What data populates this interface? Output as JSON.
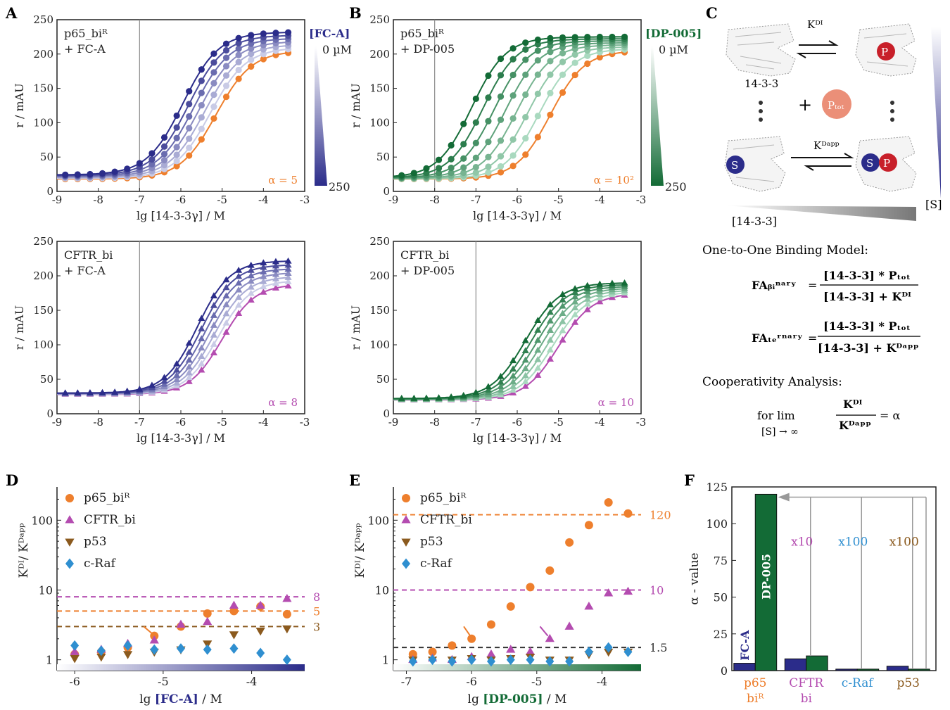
{
  "panel_letters": [
    "A",
    "B",
    "C",
    "D",
    "E",
    "F"
  ],
  "colors": {
    "orange": "#ee7f2d",
    "magenta": "#b44cb0",
    "brown": "#8b5a1e",
    "blue": "#2f8fd0",
    "navy": "#2b2c8a",
    "green": "#136b36",
    "lightgreen": "#a9d9bf",
    "lightnavy": "#c9cbe6",
    "grey": "#999999"
  },
  "chart_data": [
    {
      "id": "A1",
      "type": "line",
      "title": "p65_biᴿ\n+ FC-A",
      "xlabel": "lg [14-3-3γ] / M",
      "ylabel": "r / mAU",
      "xlim": [
        -9,
        -3
      ],
      "ylim": [
        0,
        250
      ],
      "xticks": [
        "-9",
        "-8",
        "-7",
        "-6",
        "-5",
        "-4",
        "-3"
      ],
      "yticks": [
        "0",
        "50",
        "100",
        "150",
        "200",
        "250"
      ],
      "vline": -7,
      "marker": "circle",
      "alpha_label": "α = 5",
      "alpha_color": "#ee7f2d",
      "curves": {
        "count": 7,
        "bottom": [
          18,
          24
        ],
        "top": [
          205,
          232
        ],
        "ec50": [
          -5.15,
          -5.95
        ],
        "slope": 1.0
      },
      "legend": {
        "title": "[FC-A]",
        "top": "0 µM",
        "bottom": "250",
        "color": "#2b2c8a"
      }
    },
    {
      "id": "B1",
      "type": "line",
      "title": "p65_biᴿ\n+ DP-005",
      "xlabel": "lg [14-3-3γ] / M",
      "ylabel": "r / mAU",
      "xlim": [
        -9,
        -3
      ],
      "ylim": [
        0,
        250
      ],
      "xticks": [
        "-9",
        "-8",
        "-7",
        "-6",
        "-5",
        "-4",
        "-3"
      ],
      "yticks": [
        "0",
        "50",
        "100",
        "150",
        "200",
        "250"
      ],
      "vline": -8,
      "marker": "circle",
      "alpha_label": "α = 10²",
      "alpha_color": "#ee7f2d",
      "curves": {
        "count": 8,
        "bottom": [
          18,
          20
        ],
        "top": [
          205,
          225
        ],
        "ec50": [
          -5.2,
          -7.1
        ],
        "slope": 1.05
      },
      "legend": {
        "title": "[DP-005]",
        "top": "0 µM",
        "bottom": "250",
        "color": "#136b36"
      }
    },
    {
      "id": "A2",
      "type": "line",
      "title": "CFTR_bi\n+ FC-A",
      "xlabel": "lg [14-3-3γ] / M",
      "ylabel": "r / mAU",
      "xlim": [
        -9,
        -3
      ],
      "ylim": [
        0,
        250
      ],
      "xticks": [
        "-9",
        "-8",
        "-7",
        "-6",
        "-5",
        "-4",
        "-3"
      ],
      "yticks": [
        "0",
        "50",
        "100",
        "150",
        "200",
        "250"
      ],
      "vline": -7,
      "marker": "triangle",
      "alpha_label": "α = 8",
      "alpha_color": "#b44cb0",
      "curves": {
        "count": 7,
        "bottom": [
          28,
          30
        ],
        "top": [
          188,
          222
        ],
        "ec50": [
          -5.0,
          -5.6
        ],
        "slope": 1.1
      }
    },
    {
      "id": "B2",
      "type": "line",
      "title": "CFTR_bi\n+ DP-005",
      "xlabel": "lg [14-3-3γ] / M",
      "ylabel": "r / mAU",
      "xlim": [
        -9,
        -3
      ],
      "ylim": [
        0,
        250
      ],
      "xticks": [
        "-9",
        "-8",
        "-7",
        "-6",
        "-5",
        "-4",
        "-3"
      ],
      "yticks": [
        "0",
        "50",
        "100",
        "150",
        "200",
        "250"
      ],
      "vline": -7,
      "marker": "triangle",
      "alpha_label": "α = 10",
      "alpha_color": "#b44cb0",
      "curves": {
        "count": 7,
        "bottom": [
          20,
          22
        ],
        "top": [
          175,
          190
        ],
        "ec50": [
          -5.0,
          -5.8
        ],
        "slope": 1.05
      }
    },
    {
      "id": "D",
      "type": "scatter",
      "xlabel_prefix": "lg ",
      "xlabel_bold": "[FC-A]",
      "xlabel_suffix": " / M",
      "ylabel": "Kᴰᴵ/ Kᴰᵃᵖᵖ",
      "xscale": "linear",
      "yscale": "log",
      "xlim": [
        -6.2,
        -3.4
      ],
      "ylim": [
        0.7,
        300
      ],
      "xticks": [
        "-6",
        "-5",
        "-4"
      ],
      "yticks": [
        "1",
        "10",
        "100"
      ],
      "legend": [
        "p65_biᴿ",
        "CFTR_bi",
        "p53",
        "c-Raf"
      ],
      "hlines": [
        {
          "y": 8,
          "label": "8",
          "color": "#b44cb0"
        },
        {
          "y": 5,
          "label": "5",
          "color": "#ee7f2d"
        },
        {
          "y": 3,
          "label": "3",
          "color": "#8b5a1e"
        }
      ],
      "x": [
        -6,
        -5.7,
        -5.4,
        -5.1,
        -4.8,
        -4.5,
        -4.2,
        -3.9,
        -3.6
      ],
      "series": [
        {
          "name": "p65_biᴿ",
          "marker": "circle",
          "color": "#ee7f2d",
          "y": [
            1.2,
            1.3,
            1.5,
            2.2,
            3.0,
            4.6,
            5.0,
            5.8,
            4.5
          ]
        },
        {
          "name": "CFTR_bi",
          "marker": "triangle",
          "color": "#b44cb0",
          "y": [
            1.3,
            1.4,
            1.7,
            1.9,
            3.2,
            3.5,
            6.0,
            6.0,
            7.5
          ]
        },
        {
          "name": "p53",
          "marker": "triangle-down",
          "color": "#8b5a1e",
          "y": [
            1.05,
            1.1,
            1.2,
            1.3,
            1.4,
            1.7,
            2.3,
            2.6,
            2.8
          ]
        },
        {
          "name": "c-Raf",
          "marker": "diamond",
          "color": "#2f8fd0",
          "y": [
            1.6,
            1.35,
            1.6,
            1.4,
            1.45,
            1.4,
            1.45,
            1.25,
            1.0
          ]
        }
      ]
    },
    {
      "id": "E",
      "type": "scatter",
      "xlabel_prefix": "lg ",
      "xlabel_bold": "[DP-005]",
      "xlabel_suffix": " / M",
      "ylabel": "Kᴰᴵ/ Kᴰᵃᵖᵖ",
      "xscale": "linear",
      "yscale": "log",
      "xlim": [
        -7.2,
        -3.4
      ],
      "ylim": [
        0.7,
        300
      ],
      "xticks": [
        "-7",
        "-6",
        "-5",
        "-4"
      ],
      "yticks": [
        "1",
        "10",
        "100"
      ],
      "legend": [
        "p65_biᴿ",
        "CFTR_bi",
        "p53",
        "c-Raf"
      ],
      "hlines": [
        {
          "y": 120,
          "label": "120",
          "color": "#ee7f2d"
        },
        {
          "y": 10,
          "label": "10",
          "color": "#b44cb0"
        },
        {
          "y": 1.5,
          "label": "1.5",
          "color": "#333333"
        }
      ],
      "x": [
        -6.9,
        -6.6,
        -6.3,
        -6.0,
        -5.7,
        -5.4,
        -5.1,
        -4.8,
        -4.5,
        -4.2,
        -3.9,
        -3.6
      ],
      "series": [
        {
          "name": "p65_biᴿ",
          "marker": "circle",
          "color": "#ee7f2d",
          "y": [
            1.2,
            1.3,
            1.6,
            2.0,
            3.2,
            5.8,
            11,
            19,
            48,
            85,
            180,
            125
          ]
        },
        {
          "name": "CFTR_bi",
          "marker": "triangle",
          "color": "#b44cb0",
          "y": [
            1.0,
            1.05,
            1.0,
            1.1,
            1.2,
            1.4,
            1.3,
            2.0,
            3.0,
            5.8,
            9.0,
            9.5
          ]
        },
        {
          "name": "p53",
          "marker": "triangle-down",
          "color": "#8b5a1e",
          "y": [
            1.0,
            1.0,
            1.0,
            1.05,
            1.0,
            1.05,
            1.1,
            1.0,
            1.0,
            1.2,
            1.3,
            1.3
          ]
        },
        {
          "name": "c-Raf",
          "marker": "diamond",
          "color": "#2f8fd0",
          "y": [
            0.95,
            1.0,
            0.95,
            1.0,
            0.95,
            1.0,
            1.0,
            0.95,
            0.95,
            1.3,
            1.5,
            1.3
          ]
        }
      ]
    },
    {
      "id": "F",
      "type": "bar",
      "ylabel": "α - value",
      "ylim": [
        0,
        125
      ],
      "yticks": [
        "0",
        "25",
        "50",
        "75",
        "100",
        "125"
      ],
      "categories": [
        "p65\nbiᴿ",
        "CFTR\nbi",
        "c-Raf",
        "p53"
      ],
      "category_colors": [
        "#ee7f2d",
        "#b44cb0",
        "#2f8fd0",
        "#8b5a1e"
      ],
      "series": [
        {
          "name": "FC-A",
          "color": "#2b2c8a",
          "values": [
            5,
            8,
            1,
            3
          ]
        },
        {
          "name": "DP-005",
          "color": "#136b36",
          "values": [
            120,
            10,
            1,
            1
          ]
        }
      ],
      "factors": [
        {
          "text": "x10",
          "color": "#b44cb0"
        },
        {
          "text": "x100",
          "color": "#2f8fd0"
        },
        {
          "text": "x100",
          "color": "#8b5a1e"
        }
      ]
    }
  ],
  "schematic": {
    "kd1": "Kᴰᴵ",
    "kdapp": "Kᴰᵃᵖᵖ",
    "protein": "14-3-3",
    "p": "P",
    "ptot": "Pₜₒₜ",
    "s": "S",
    "plus": "+",
    "axis_protein": "[14-3-3]",
    "axis_s": "[S]",
    "model_title": "One-to-One Binding Model:",
    "fa_binary_lhs": "FAᵦᵢⁿᵃʳʸ",
    "fa_ternary_lhs": "FAₜₑʳⁿᵃʳʸ",
    "num": "[14-3-3] * Pₜₒₜ",
    "den_binary": "[14-3-3] + Kᴰᴵ",
    "den_ternary": "[14-3-3] + Kᴰᵃᵖᵖ",
    "coop_title": "Cooperativity Analysis:",
    "coop_for": "for lim",
    "coop_sub": "[S] → ∞",
    "coop_rhs": "= α"
  }
}
